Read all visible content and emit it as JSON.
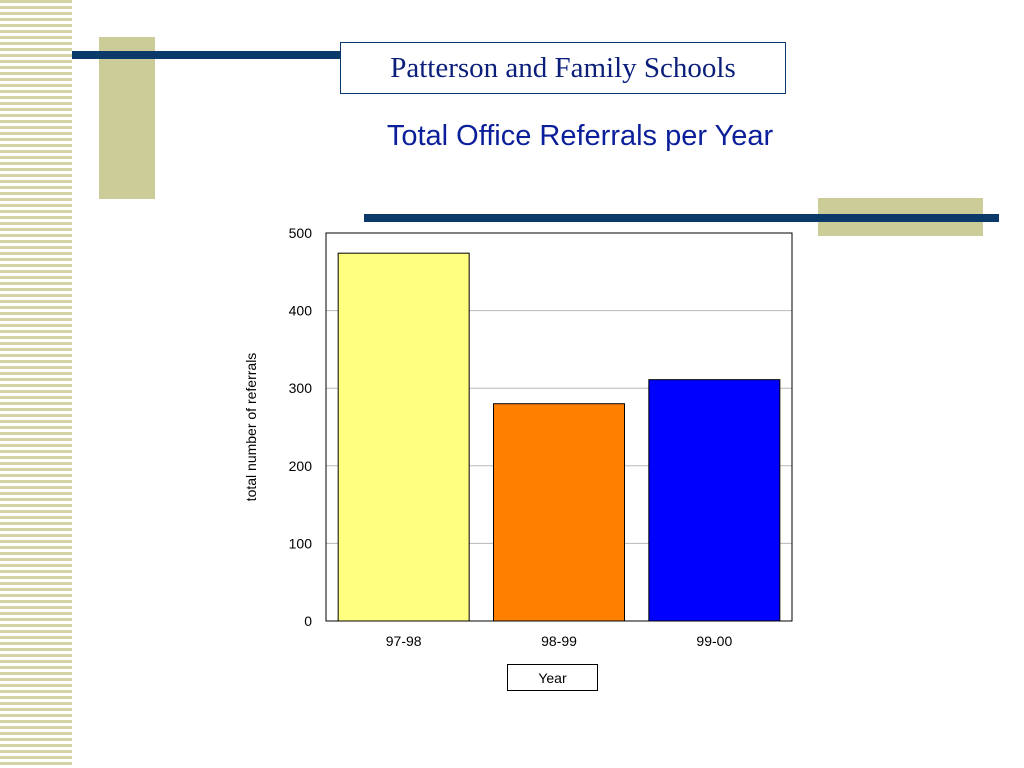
{
  "header": {
    "title": "Patterson and Family Schools",
    "subtitle": "Total Office Referrals per Year"
  },
  "chart_data": {
    "type": "bar",
    "title": "Total Office Referrals per Year",
    "xlabel": "Year",
    "ylabel": "total number of referrals",
    "categories": [
      "97-98",
      "98-99",
      "99-00"
    ],
    "values": [
      474,
      280,
      311
    ],
    "colors": [
      "#ffff80",
      "#ff8000",
      "#0000ff"
    ],
    "ylim": [
      0,
      500
    ],
    "yticks": [
      0,
      100,
      200,
      300,
      400,
      500
    ],
    "grid": true,
    "legend": "none"
  },
  "colors": {
    "accent_navy": "#0b3a6a",
    "accent_beige": "#cccc99",
    "title_text": "#0b1f7a"
  }
}
